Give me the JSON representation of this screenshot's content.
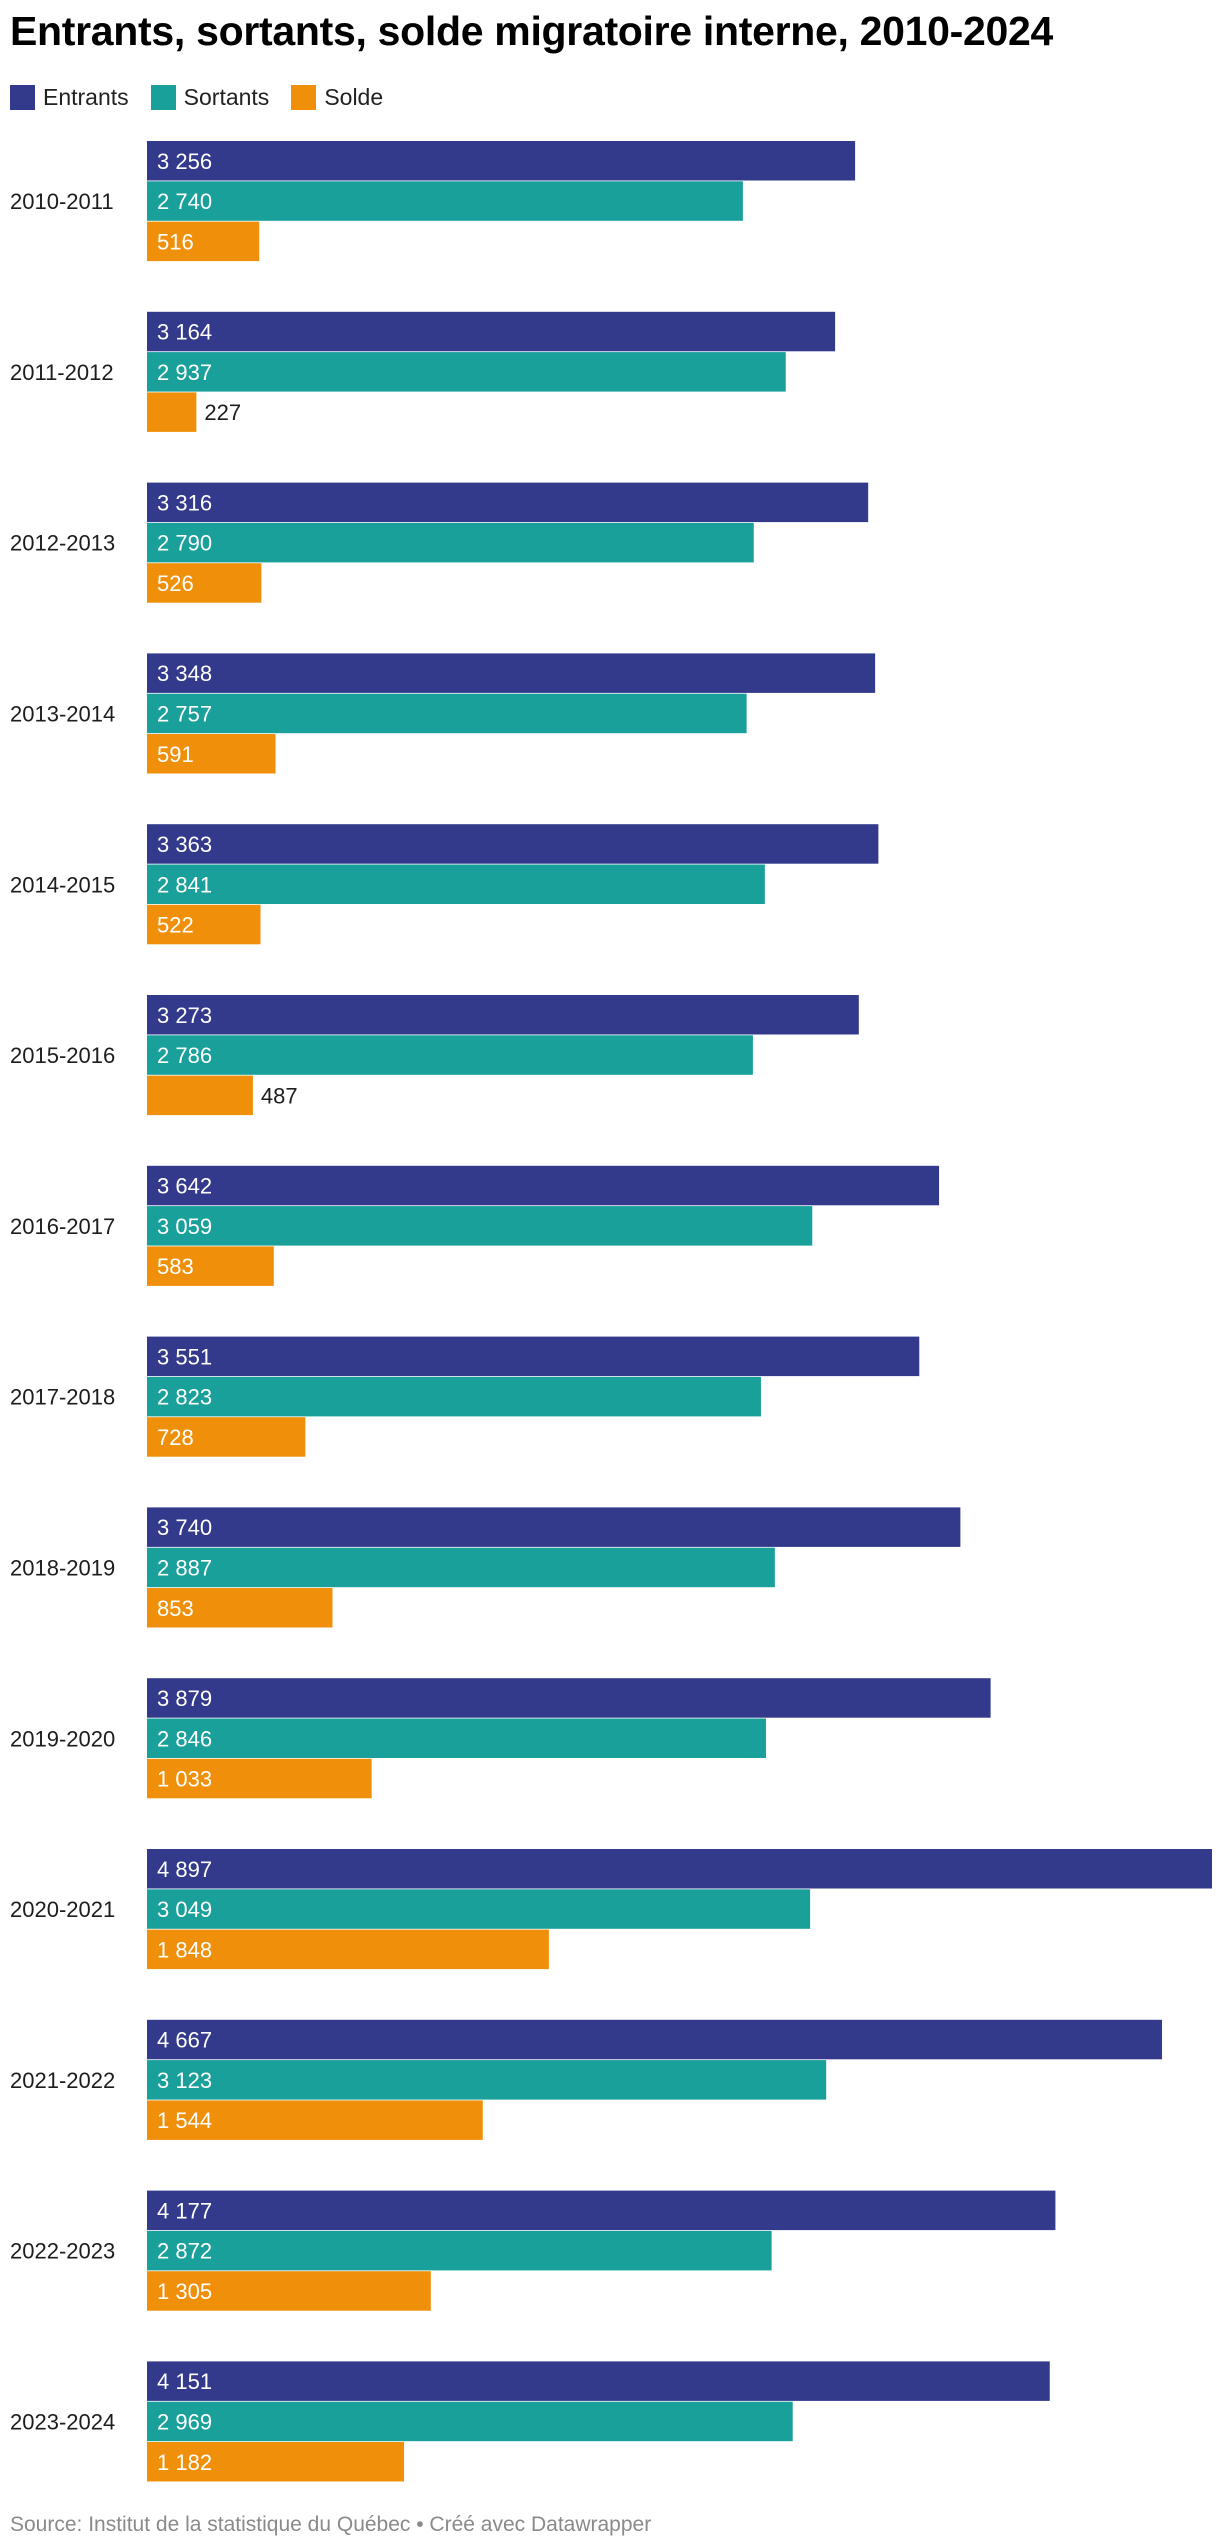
{
  "title": "Entrants, sortants, solde migratoire interne, 2010-2024",
  "source": "Source: Institut de la statistique du Québec • Créé avec Datawrapper",
  "colors": {
    "entrants": "#333a8c",
    "sortants": "#1aa09a",
    "solde": "#f0900a"
  },
  "legend": [
    {
      "label": "Entrants",
      "color": "#333a8c"
    },
    {
      "label": "Sortants",
      "color": "#1aa09a"
    },
    {
      "label": "Solde",
      "color": "#f0900a"
    }
  ],
  "chart_data": {
    "type": "bar",
    "orientation": "horizontal",
    "categories": [
      "2010-2011",
      "2011-2012",
      "2012-2013",
      "2013-2014",
      "2014-2015",
      "2015-2016",
      "2016-2017",
      "2017-2018",
      "2018-2019",
      "2019-2020",
      "2020-2021",
      "2021-2022",
      "2022-2023",
      "2023-2024"
    ],
    "series": [
      {
        "name": "Entrants",
        "color": "#333a8c",
        "values": [
          3256,
          3164,
          3316,
          3348,
          3363,
          3273,
          3642,
          3551,
          3740,
          3879,
          4897,
          4667,
          4177,
          4151
        ],
        "labels": [
          "3 256",
          "3 164",
          "3 316",
          "3 348",
          "3 363",
          "3 273",
          "3 642",
          "3 551",
          "3 740",
          "3 879",
          "4 897",
          "4 667",
          "4 177",
          "4 151"
        ]
      },
      {
        "name": "Sortants",
        "color": "#1aa09a",
        "values": [
          2740,
          2937,
          2790,
          2757,
          2841,
          2786,
          3059,
          2823,
          2887,
          2846,
          3049,
          3123,
          2872,
          2969
        ],
        "labels": [
          "2 740",
          "2 937",
          "2 790",
          "2 757",
          "2 841",
          "2 786",
          "3 059",
          "2 823",
          "2 887",
          "2 846",
          "3 049",
          "3 123",
          "2 872",
          "2 969"
        ]
      },
      {
        "name": "Solde",
        "color": "#f0900a",
        "values": [
          516,
          227,
          526,
          591,
          522,
          487,
          583,
          728,
          853,
          1033,
          1848,
          1544,
          1305,
          1182
        ],
        "labels": [
          "516",
          "227",
          "526",
          "591",
          "522",
          "487",
          "583",
          "728",
          "853",
          "1 033",
          "1 848",
          "1 544",
          "1 305",
          "1 182"
        ]
      }
    ],
    "xlim": [
      0,
      4897
    ],
    "legend_position": "top-left",
    "grid": false
  }
}
